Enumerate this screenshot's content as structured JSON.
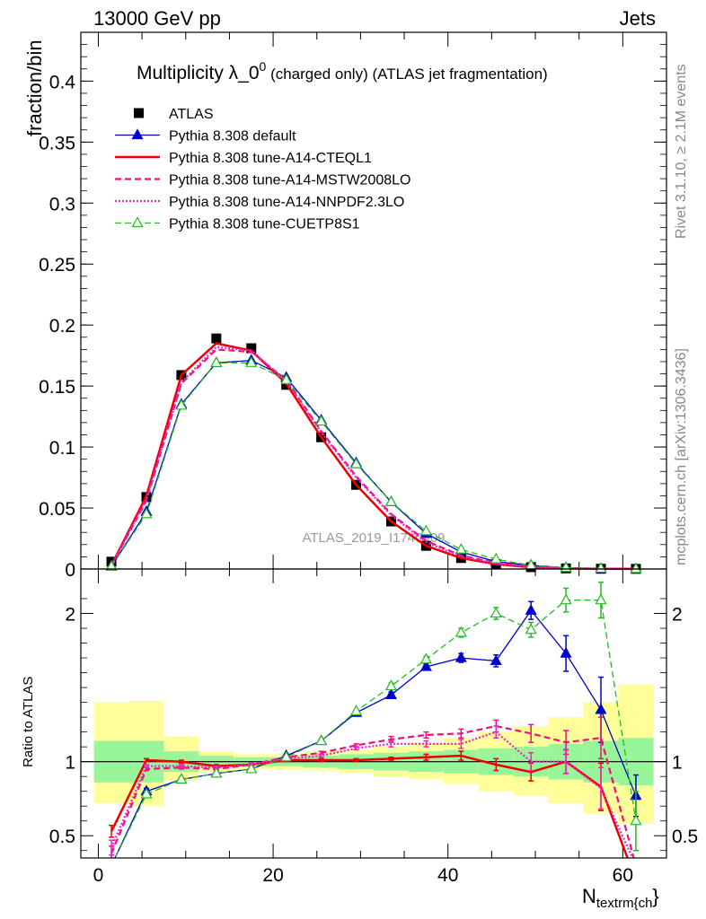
{
  "header": {
    "left": "13000 GeV pp",
    "right": "Jets"
  },
  "side": {
    "rivet": "Rivet 3.1.10, ≥ 2.1M events",
    "mcplots": "mcplots.cern.ch [arXiv:1306.3436]"
  },
  "title": {
    "main": "Multiplicity λ_0",
    "sup": "0",
    "rest": " (charged only) (ATLAS jet fragmentation)"
  },
  "watermark": "ATLAS_2019_I1740909",
  "xlabel_main": "N",
  "xlabel_sub": "textrm{ch",
  "xlabel_tail": "}",
  "ylabel_top": "fraction/bin",
  "ylabel_bottom": "Ratio to ATLAS",
  "colors": {
    "atlas": "#000000",
    "default": "#0000cc",
    "cteql1": "#ee0000",
    "mstw": "#ee1177",
    "nnpdf": "#ee22cc",
    "cuetp": "#22bb22",
    "band_inner": "#99f599",
    "band_outer": "#ffff99"
  },
  "chart_data": [
    {
      "type": "scatter",
      "panel": "main",
      "xlim": [
        -2,
        65
      ],
      "ylim": [
        0,
        0.44
      ],
      "x_ticks": [
        0,
        20,
        40,
        60
      ],
      "y_ticks": [
        0,
        0.05,
        0.1,
        0.15,
        0.2,
        0.25,
        0.3,
        0.35,
        0.4
      ],
      "y_tick_labels": [
        "0",
        "0.05",
        "0.1",
        "0.15",
        "0.2",
        "0.25",
        "0.3",
        "0.35",
        "0.4"
      ],
      "x": [
        1.5,
        5.5,
        9.5,
        13.5,
        17.5,
        21.5,
        25.5,
        29.5,
        33.5,
        37.5,
        41.5,
        45.5,
        49.5,
        53.5,
        57.5,
        61.5
      ],
      "series": [
        {
          "name": "ATLAS",
          "key": "atlas",
          "style": "square",
          "values": [
            0.006,
            0.059,
            0.159,
            0.189,
            0.181,
            0.151,
            0.108,
            0.069,
            0.039,
            0.019,
            0.009,
            0.004,
            0.0015,
            0.0005,
            0.0002,
            0.0001
          ]
        },
        {
          "name": "Pythia 8.308 default",
          "key": "default",
          "style": "solid-triangle",
          "values": [
            0.002,
            0.047,
            0.135,
            0.169,
            0.171,
            0.157,
            0.122,
            0.087,
            0.055,
            0.029,
            0.014,
            0.006,
            0.003,
            0.001,
            0.0003,
            0.0001
          ]
        },
        {
          "name": "Pythia 8.308 tune-A14-CTEQL1",
          "key": "cteql1",
          "style": "solid",
          "values": [
            0.003,
            0.06,
            0.159,
            0.185,
            0.179,
            0.152,
            0.108,
            0.069,
            0.039,
            0.019,
            0.009,
            0.004,
            0.0014,
            0.0005,
            0.0002,
            0.0001
          ]
        },
        {
          "name": "Pythia 8.308 tune-A14-MSTW2008LO",
          "key": "mstw",
          "style": "dashed",
          "values": [
            0.003,
            0.056,
            0.152,
            0.18,
            0.178,
            0.155,
            0.113,
            0.076,
            0.045,
            0.023,
            0.011,
            0.005,
            0.0018,
            0.0006,
            0.0002,
            0.0001
          ]
        },
        {
          "name": "Pythia 8.308 tune-A14-NNPDF2.3LO",
          "key": "nnpdf",
          "style": "dotted",
          "values": [
            0.003,
            0.057,
            0.153,
            0.182,
            0.179,
            0.154,
            0.112,
            0.075,
            0.044,
            0.022,
            0.01,
            0.0045,
            0.0016,
            0.0006,
            0.0002,
            0.0001
          ]
        },
        {
          "name": "Pythia 8.308 tune-CUETP8S1",
          "key": "cuetp",
          "style": "dashed-open-triangle",
          "values": [
            0.002,
            0.045,
            0.134,
            0.169,
            0.169,
            0.155,
            0.121,
            0.086,
            0.055,
            0.031,
            0.016,
            0.008,
            0.003,
            0.001,
            0.0004,
            0.0001
          ]
        }
      ]
    },
    {
      "type": "line",
      "panel": "ratio",
      "xlim": [
        -2,
        65
      ],
      "ylim": [
        0.35,
        2.3
      ],
      "x_ticks": [
        0,
        20,
        40,
        60
      ],
      "x_tick_labels": [
        "0",
        "20",
        "40",
        "60"
      ],
      "y_ticks": [
        0.5,
        1,
        2
      ],
      "y_tick_labels": [
        "0.5",
        "1",
        "2"
      ],
      "bins": [
        [
          -0.5,
          3.5
        ],
        [
          3.5,
          7.5
        ],
        [
          7.5,
          11.5
        ],
        [
          11.5,
          15.5
        ],
        [
          15.5,
          19.5
        ],
        [
          19.5,
          23.5
        ],
        [
          23.5,
          27.5
        ],
        [
          27.5,
          31.5
        ],
        [
          31.5,
          35.5
        ],
        [
          35.5,
          39.5
        ],
        [
          39.5,
          43.5
        ],
        [
          43.5,
          47.5
        ],
        [
          47.5,
          51.5
        ],
        [
          51.5,
          55.5
        ],
        [
          55.5,
          59.5
        ],
        [
          59.5,
          63.5
        ]
      ],
      "band_inner": [
        [
          0.86,
          1.14
        ],
        [
          0.86,
          1.14
        ],
        [
          0.93,
          1.07
        ],
        [
          0.96,
          1.04
        ],
        [
          0.97,
          1.03
        ],
        [
          0.97,
          1.03
        ],
        [
          0.96,
          1.04
        ],
        [
          0.95,
          1.05
        ],
        [
          0.94,
          1.06
        ],
        [
          0.93,
          1.07
        ],
        [
          0.92,
          1.08
        ],
        [
          0.91,
          1.09
        ],
        [
          0.9,
          1.1
        ],
        [
          0.88,
          1.12
        ],
        [
          0.86,
          1.14
        ],
        [
          0.84,
          1.16
        ]
      ],
      "band_outer": [
        [
          0.72,
          1.4
        ],
        [
          0.7,
          1.41
        ],
        [
          0.87,
          1.17
        ],
        [
          0.93,
          1.07
        ],
        [
          0.95,
          1.05
        ],
        [
          0.95,
          1.05
        ],
        [
          0.94,
          1.07
        ],
        [
          0.92,
          1.08
        ],
        [
          0.9,
          1.1
        ],
        [
          0.88,
          1.13
        ],
        [
          0.85,
          1.16
        ],
        [
          0.8,
          1.2
        ],
        [
          0.77,
          1.24
        ],
        [
          0.72,
          1.3
        ],
        [
          0.65,
          1.4
        ],
        [
          0.58,
          1.52
        ]
      ],
      "x": [
        1.5,
        5.5,
        9.5,
        13.5,
        17.5,
        21.5,
        25.5,
        29.5,
        33.5,
        37.5,
        41.5,
        45.5,
        49.5,
        53.5,
        57.5,
        61.5
      ],
      "series": [
        {
          "name": "Pythia 8.308 default",
          "key": "default",
          "style": "solid-triangle",
          "values": [
            0.3,
            0.8,
            0.88,
            0.92,
            0.95,
            1.04,
            1.14,
            1.33,
            1.45,
            1.64,
            1.7,
            1.68,
            2.02,
            1.73,
            1.35,
            0.77
          ],
          "err": [
            0,
            0.02,
            0.01,
            0.01,
            0.01,
            0.01,
            0.01,
            0.01,
            0.02,
            0.02,
            0.03,
            0.04,
            0.06,
            0.12,
            0.22,
            0.14
          ]
        },
        {
          "name": "Pythia 8.308 tune-A14-CTEQL1",
          "key": "cteql1",
          "style": "solid",
          "values": [
            0.53,
            1.01,
            1.0,
            0.97,
            0.98,
            1.01,
            1.01,
            1.01,
            1.02,
            1.03,
            1.04,
            0.98,
            0.93,
            1.0,
            0.83,
            0.2
          ],
          "err": [
            0.04,
            0.01,
            0.01,
            0.01,
            0.01,
            0.01,
            0.01,
            0.01,
            0.01,
            0.02,
            0.03,
            0.04,
            0.06,
            0.08,
            0.16,
            0.0
          ]
        },
        {
          "name": "Pythia 8.308 tune-A14-MSTW2008LO",
          "key": "mstw",
          "style": "dashed",
          "values": [
            0.38,
            0.95,
            0.96,
            0.95,
            0.98,
            1.03,
            1.06,
            1.11,
            1.15,
            1.18,
            1.19,
            1.24,
            1.19,
            1.13,
            1.16,
            0.3
          ],
          "err": [
            0.05,
            0.01,
            0.01,
            0.01,
            0.01,
            0.01,
            0.01,
            0.01,
            0.02,
            0.02,
            0.03,
            0.04,
            0.06,
            0.08,
            0.14,
            0.0
          ]
        },
        {
          "name": "Pythia 8.308 tune-A14-NNPDF2.3LO",
          "key": "nnpdf",
          "style": "dotted",
          "values": [
            0.42,
            0.97,
            0.97,
            0.96,
            0.98,
            1.02,
            1.04,
            1.09,
            1.12,
            1.12,
            1.12,
            1.2,
            1.0,
            1.0,
            0.82,
            0.3
          ],
          "err": [
            0.05,
            0.01,
            0.01,
            0.01,
            0.01,
            0.01,
            0.01,
            0.01,
            0.02,
            0.02,
            0.03,
            0.04,
            0.06,
            0.08,
            0.14,
            0.0
          ]
        },
        {
          "name": "Pythia 8.308 tune-CUETP8S1",
          "key": "cuetp",
          "style": "dashed-open-triangle",
          "values": [
            0.3,
            0.78,
            0.88,
            0.92,
            0.95,
            1.03,
            1.14,
            1.34,
            1.51,
            1.69,
            1.87,
            2.0,
            1.89,
            2.09,
            2.09,
            0.6
          ],
          "err": [
            0,
            0.02,
            0.01,
            0.01,
            0.01,
            0.01,
            0.01,
            0.01,
            0.02,
            0.02,
            0.03,
            0.04,
            0.05,
            0.08,
            0.12,
            0.2
          ]
        }
      ]
    }
  ]
}
